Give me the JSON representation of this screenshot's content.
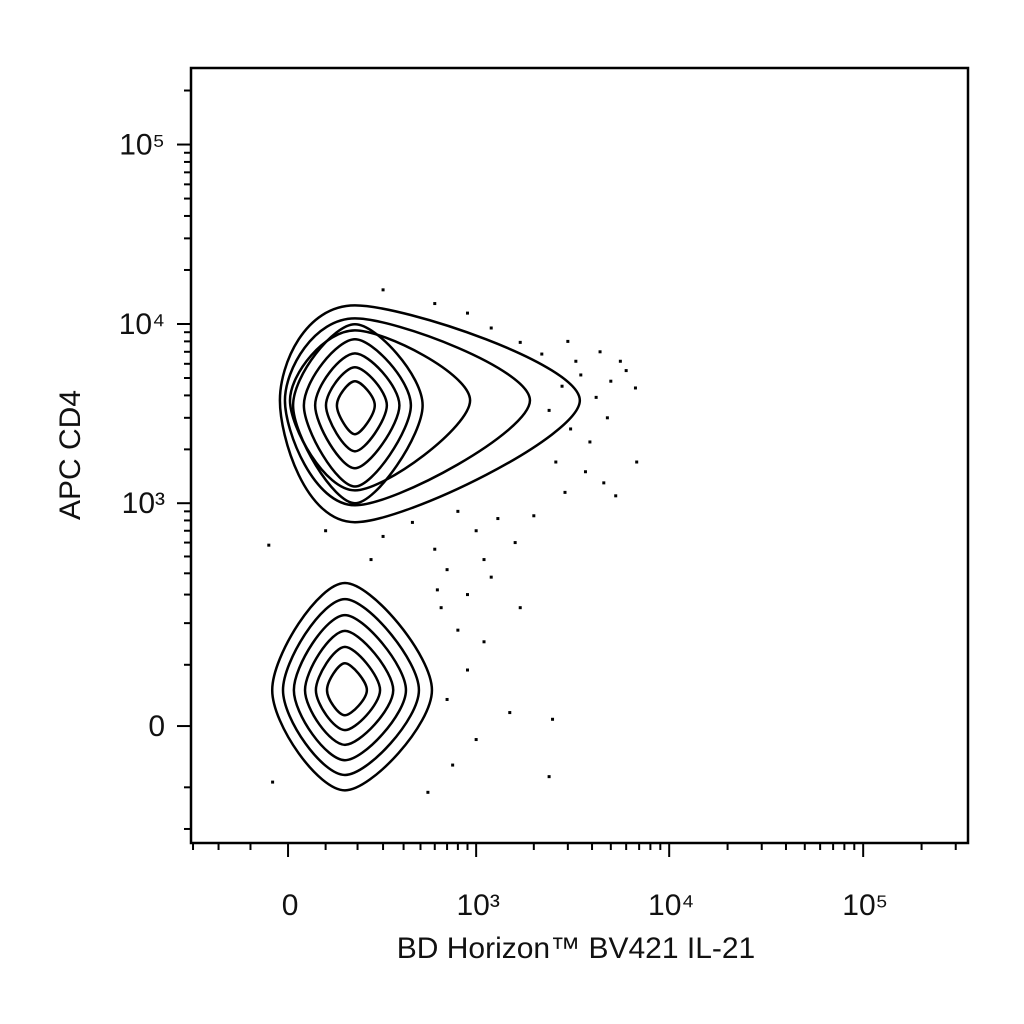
{
  "chart_data": {
    "type": "contour",
    "xlabel": "BD Horizon™ BV421 IL-21",
    "ylabel": "APC CD4",
    "xscale": "asinh",
    "yscale": "asinh",
    "color": "#000000",
    "xlim": [
      -309,
      347000
    ],
    "ylim": [
      -245,
      267000
    ],
    "xticks": [
      0,
      {
        "value": 1000,
        "label": "10³"
      },
      {
        "value": 10000,
        "label": "10⁴"
      },
      {
        "value": 100000,
        "label": "10⁵"
      }
    ],
    "yticks": [
      0,
      {
        "value": 1000,
        "label": "10³"
      },
      {
        "value": 10000,
        "label": "10⁴"
      },
      {
        "value": 100000,
        "label": "10⁵"
      }
    ],
    "xminorticks": [
      -300,
      -200,
      -100,
      100,
      200,
      300,
      400,
      500,
      600,
      700,
      800,
      900,
      2000,
      3000,
      4000,
      5000,
      6000,
      7000,
      8000,
      9000,
      20000,
      30000,
      40000,
      50000,
      60000,
      70000,
      80000,
      90000,
      200000,
      300000
    ],
    "yminorticks": [
      -200,
      -100,
      100,
      200,
      300,
      400,
      500,
      600,
      700,
      800,
      900,
      2000,
      3000,
      4000,
      5000,
      6000,
      7000,
      8000,
      9000,
      20000,
      30000,
      40000,
      50000,
      60000,
      70000,
      80000,
      90000,
      200000
    ],
    "contours": [
      {
        "x": [
          -41,
          158,
          579,
          158
        ],
        "y": [
          55,
          351,
          55,
          -106
        ]
      },
      {
        "x": [
          -13,
          158,
          490,
          158
        ],
        "y": [
          55,
          282,
          55,
          -77
        ]
      },
      {
        "x": [
          15,
          158,
          413,
          158
        ],
        "y": [
          55,
          225,
          55,
          -52
        ]
      },
      {
        "x": [
          44,
          158,
          347,
          158
        ],
        "y": [
          55,
          178,
          55,
          -28
        ]
      },
      {
        "x": [
          73,
          158,
          287,
          158
        ],
        "y": [
          55,
          138,
          55,
          -6
        ]
      },
      {
        "x": [
          104,
          158,
          234,
          158
        ],
        "y": [
          55,
          103,
          55,
          16
        ]
      },
      {
        "x": [
          -21,
          191,
          3460,
          191
        ],
        "y": [
          3750,
          12700,
          3750,
          782
        ]
      },
      {
        "x": [
          -8,
          191,
          1910,
          191
        ],
        "y": [
          3750,
          10750,
          3750,
          974
        ]
      },
      {
        "x": [
          5,
          191,
          929,
          191
        ],
        "y": [
          3750,
          9210,
          3750,
          1180
        ]
      },
      {
        "x": [
          13,
          191,
          514,
          191
        ],
        "y": [
          3520,
          9960,
          3520,
          1000
        ]
      },
      {
        "x": [
          41,
          191,
          441,
          191
        ],
        "y": [
          3520,
          8220,
          3520,
          1240
        ]
      },
      {
        "x": [
          71,
          191,
          378,
          191
        ],
        "y": [
          3520,
          6860,
          3520,
          1570
        ]
      },
      {
        "x": [
          101,
          191,
          317,
          191
        ],
        "y": [
          3520,
          5740,
          3520,
          1950
        ]
      },
      {
        "x": [
          133,
          191,
          265,
          191
        ],
        "y": [
          3520,
          4800,
          3520,
          2430
        ]
      }
    ],
    "points": {
      "x": [
        2800,
        3500,
        4200,
        5000,
        6000,
        6700,
        3100,
        3900,
        4600,
        5300,
        2600,
        3300,
        4400,
        2200,
        1700,
        1200,
        900,
        600,
        300,
        6800,
        3000,
        4800,
        5600,
        2400,
        3700,
        2900,
        300,
        450,
        600,
        800,
        1000,
        1300,
        1600,
        2000,
        700,
        1100,
        -50,
        100,
        250,
        900,
        1200,
        650,
        800,
        900,
        700,
        1000,
        1100,
        750,
        1500,
        2500,
        2400,
        620,
        1700,
        -40,
        550
      ],
      "y": [
        4500,
        5200,
        3900,
        4800,
        5500,
        4400,
        2600,
        2200,
        1300,
        1100,
        1700,
        6200,
        7000,
        6800,
        7900,
        9500,
        11500,
        13000,
        15500,
        1700,
        8000,
        3000,
        6200,
        3300,
        1500,
        1150,
        650,
        780,
        550,
        900,
        700,
        820,
        600,
        850,
        420,
        480,
        580,
        700,
        480,
        300,
        380,
        250,
        180,
        90,
        40,
        -20,
        150,
        -60,
        20,
        10,
        -80,
        320,
        250,
        -90,
        -110
      ]
    }
  }
}
